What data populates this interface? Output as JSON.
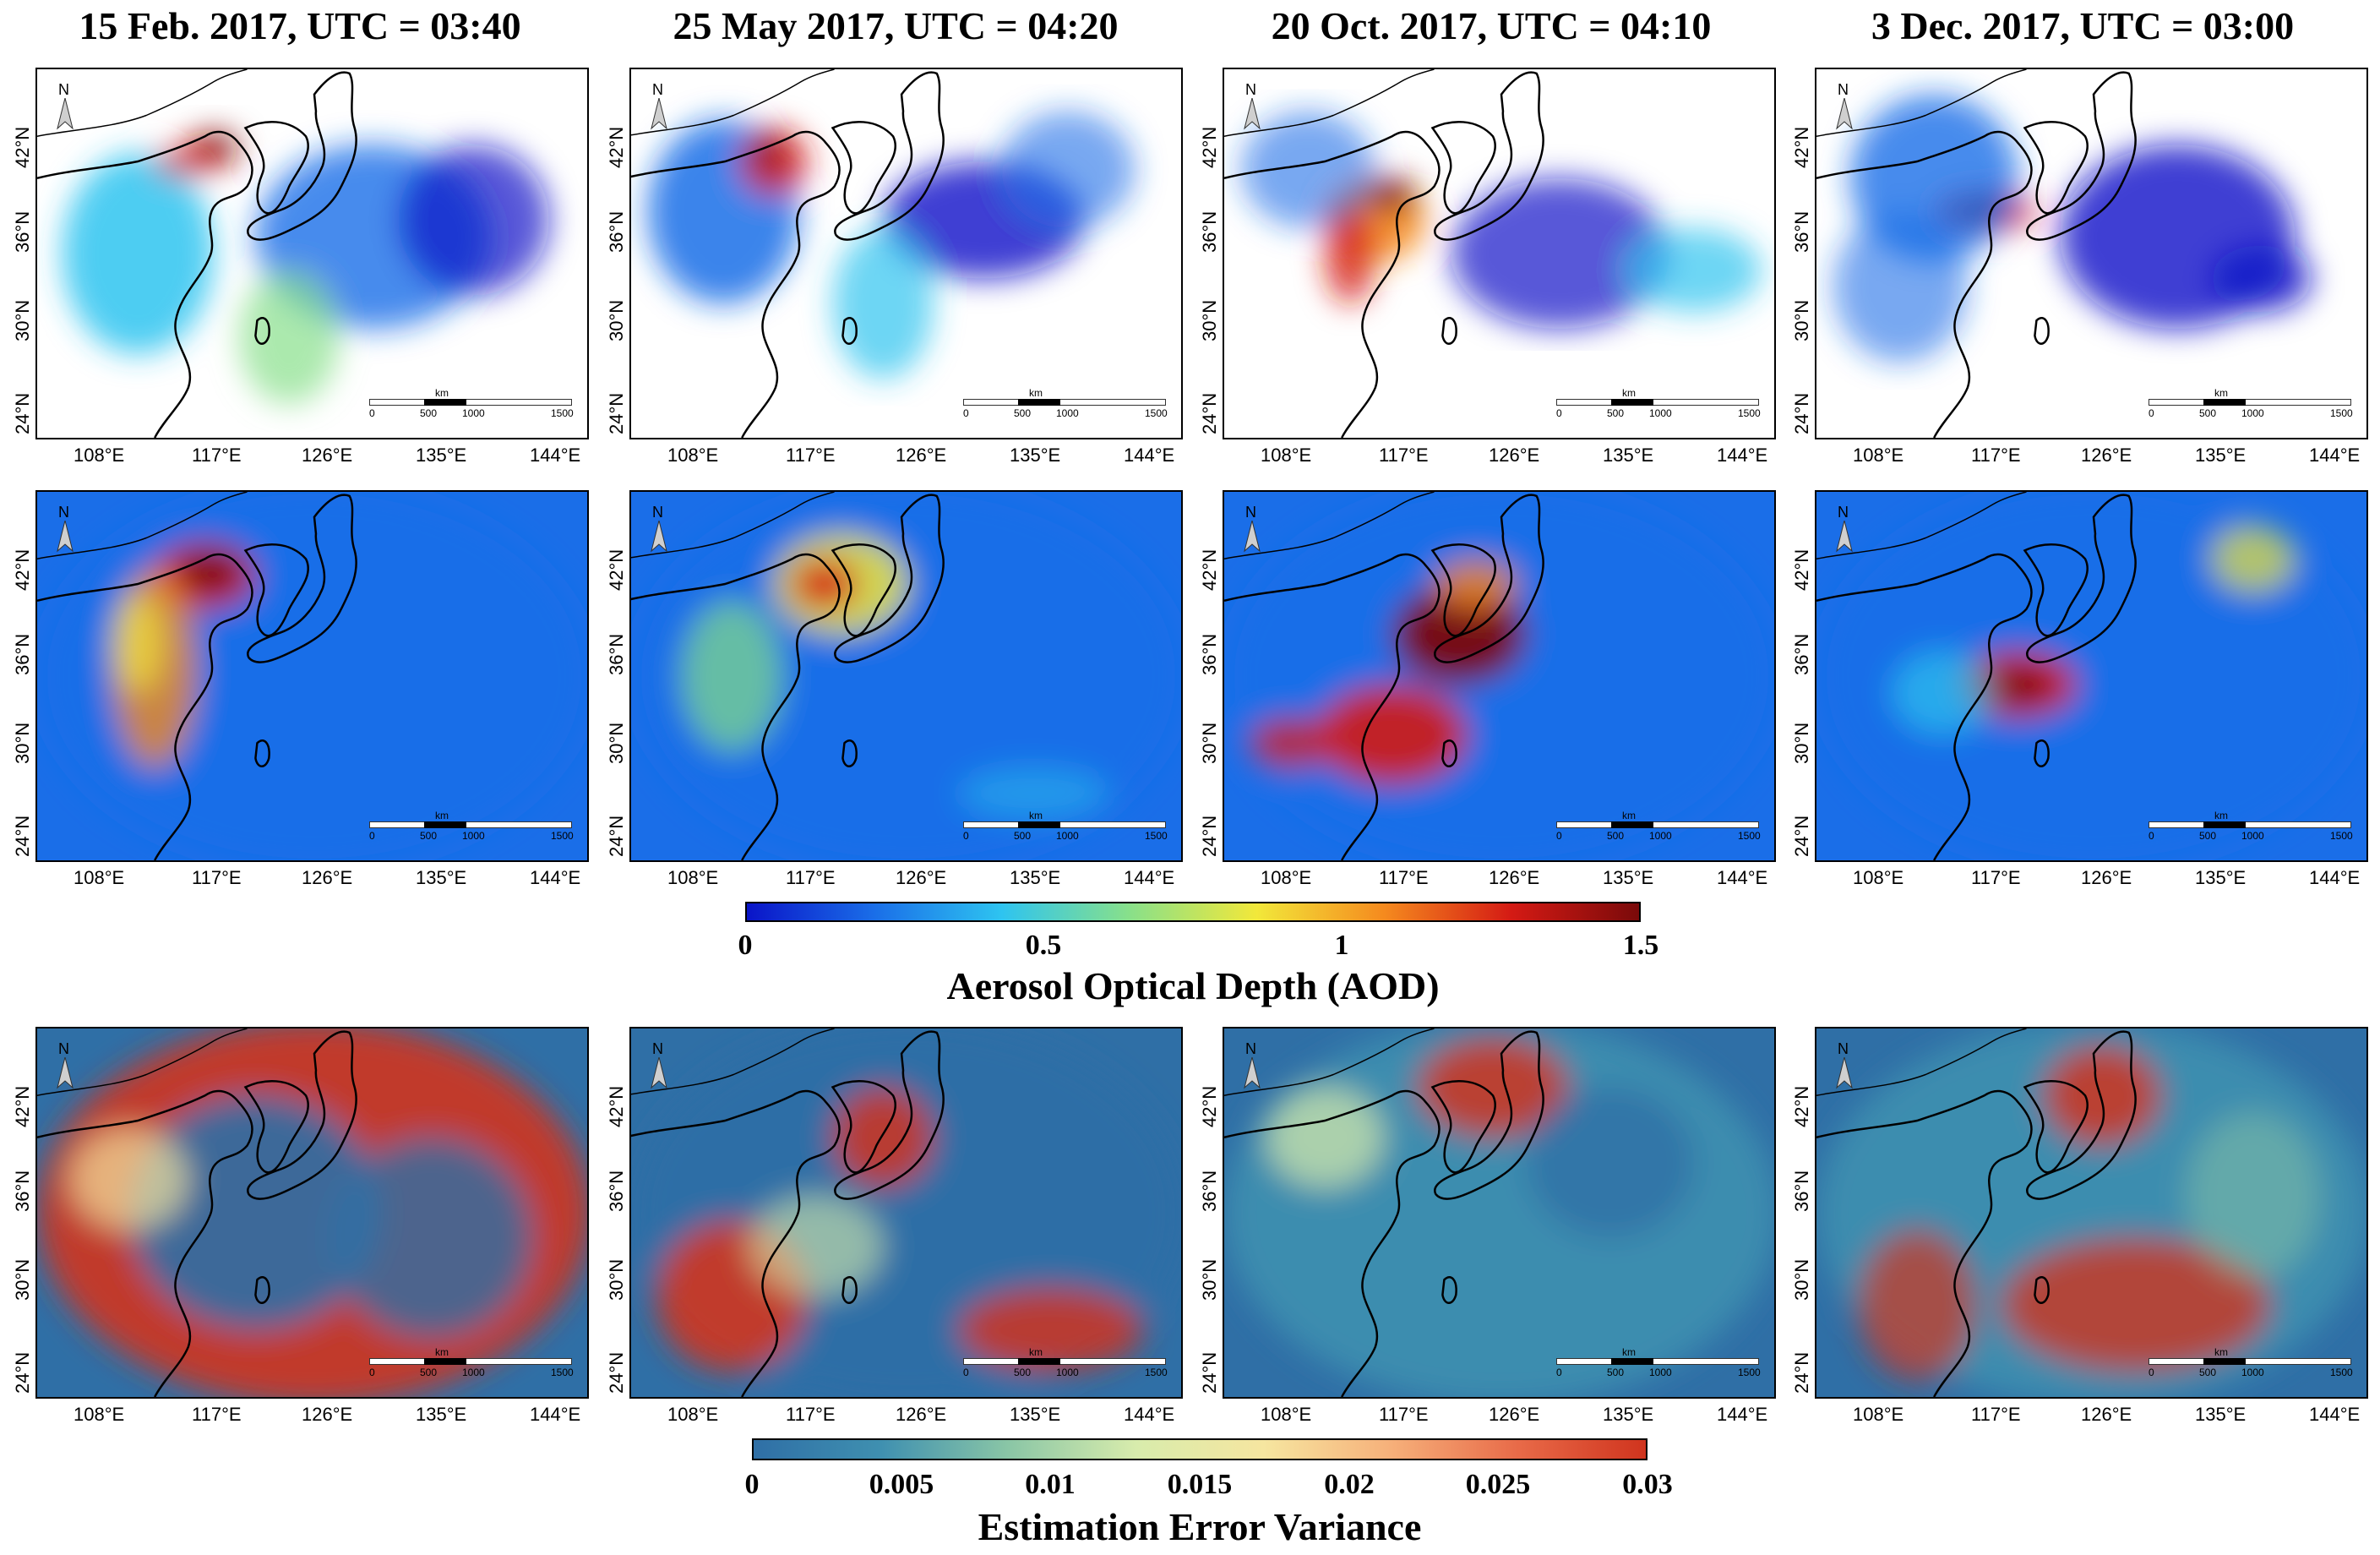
{
  "columns": [
    {
      "title": "15 Feb. 2017, UTC = 03:40"
    },
    {
      "title": "25 May 2017, UTC = 04:20"
    },
    {
      "title": "20 Oct. 2017, UTC = 04:10"
    },
    {
      "title": "3 Dec. 2017, UTC = 03:00"
    }
  ],
  "rows": [
    {
      "name": "satellite-aod"
    },
    {
      "name": "estimated-aod"
    },
    {
      "name": "error-variance"
    }
  ],
  "latitude_labels": [
    "42°N",
    "36°N",
    "30°N",
    "24°N"
  ],
  "longitude_labels": [
    "108°E",
    "117°E",
    "126°E",
    "135°E",
    "144°E"
  ],
  "north_label": "N",
  "scale_bar": {
    "unit": "km",
    "ticks": [
      "0",
      "500",
      "1000",
      "1500"
    ]
  },
  "aod_colorbar": {
    "title": "Aerosol Optical Depth (AOD)",
    "ticks": [
      "0",
      "0.5",
      "1",
      "1.5"
    ],
    "range": [
      0,
      1.5
    ],
    "colors": [
      "#0a14c8",
      "#1a6ee8",
      "#2ec4f0",
      "#88e08a",
      "#f2e83a",
      "#f58a1e",
      "#d41a14",
      "#7a0a0a"
    ]
  },
  "variance_colorbar": {
    "title": "Estimation Error Variance",
    "ticks": [
      "0",
      "0.005",
      "0.01",
      "0.015",
      "0.02",
      "0.025",
      "0.03"
    ],
    "range": [
      0,
      0.03
    ],
    "colors": [
      "#2f6fa6",
      "#3f90b0",
      "#8ac6a6",
      "#d8ecac",
      "#f6e6a0",
      "#f6b07a",
      "#e86a48",
      "#d0341e"
    ]
  }
}
